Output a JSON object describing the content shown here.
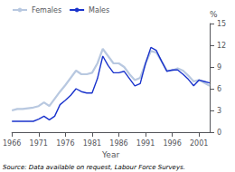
{
  "chart_data": {
    "type": "line",
    "xlabel": "Year",
    "ylabel": "%",
    "annotations": [
      "Source: Data available on request, Labour Force Surveys."
    ],
    "x": [
      1966,
      1967,
      1968,
      1969,
      1970,
      1971,
      1972,
      1973,
      1974,
      1975,
      1976,
      1977,
      1978,
      1979,
      1980,
      1981,
      1982,
      1983,
      1984,
      1985,
      1986,
      1987,
      1988,
      1989,
      1990,
      1991,
      1992,
      1993,
      1994,
      1995,
      1996,
      1997,
      1998,
      1999,
      2000,
      2001,
      2002,
      2003
    ],
    "series": [
      {
        "name": "Females",
        "color": "#b8c8e0",
        "values": [
          3.0,
          3.2,
          3.2,
          3.3,
          3.4,
          3.6,
          4.1,
          3.6,
          4.6,
          5.6,
          6.5,
          7.5,
          8.5,
          8.0,
          8.0,
          8.2,
          9.5,
          11.5,
          10.5,
          9.5,
          9.5,
          9.0,
          8.0,
          7.2,
          7.5,
          9.5,
          11.2,
          11.0,
          9.8,
          8.5,
          8.5,
          8.8,
          8.5,
          7.8,
          7.0,
          7.2,
          6.8,
          6.4
        ]
      },
      {
        "name": "Males",
        "color": "#1a33cc",
        "values": [
          1.5,
          1.5,
          1.5,
          1.5,
          1.5,
          1.8,
          2.2,
          1.7,
          2.2,
          3.8,
          4.4,
          5.1,
          6.0,
          5.6,
          5.4,
          5.4,
          7.4,
          10.5,
          9.2,
          8.2,
          8.2,
          8.4,
          7.4,
          6.4,
          6.7,
          9.5,
          11.7,
          11.3,
          9.8,
          8.4,
          8.6,
          8.6,
          8.0,
          7.3,
          6.4,
          7.2,
          7.0,
          6.8
        ]
      }
    ],
    "xlim": [
      1966,
      2003
    ],
    "xticks": [
      1966,
      1971,
      1976,
      1981,
      1986,
      1991,
      1996,
      2001
    ],
    "ylim": [
      0,
      15
    ],
    "yticks": [
      0,
      3,
      6,
      9,
      12,
      15
    ],
    "grid": false,
    "legend": "upper left"
  }
}
